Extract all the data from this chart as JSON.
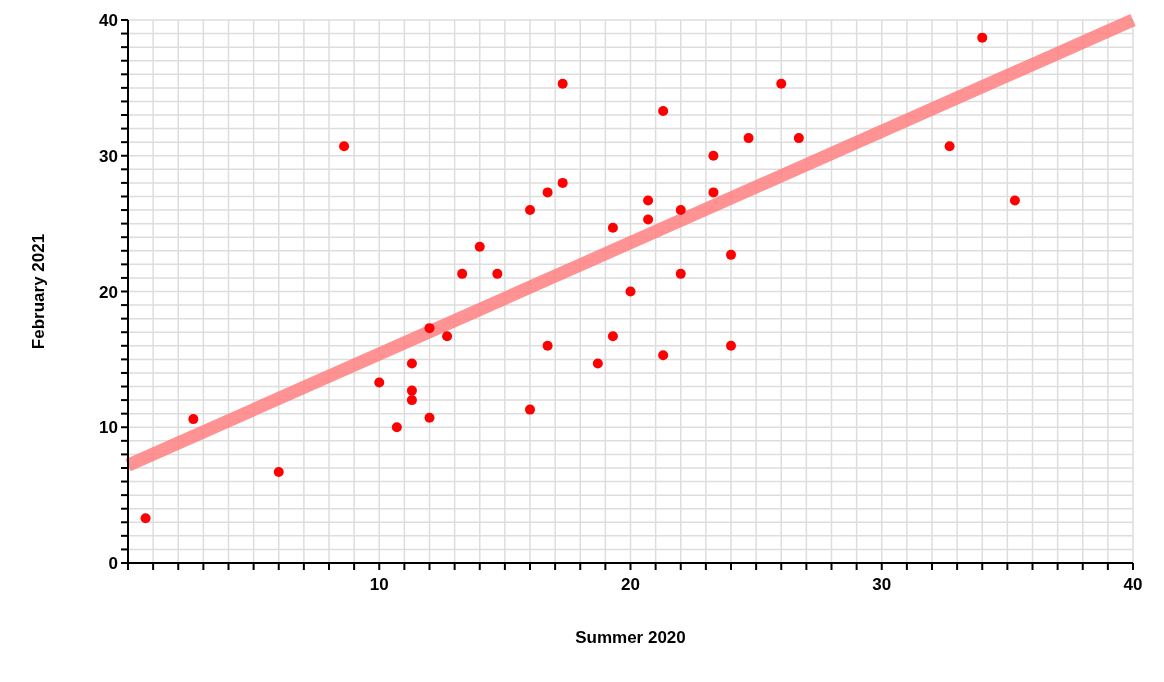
{
  "chart_data": {
    "type": "scatter",
    "xlabel": "Summer 2020",
    "ylabel": "February 2021",
    "xlim": [
      0,
      40
    ],
    "ylim": [
      0,
      40
    ],
    "xticks": [
      {
        "value": 0,
        "label": null
      },
      {
        "value": 1,
        "label": null
      },
      {
        "value": 2,
        "label": null
      },
      {
        "value": 3,
        "label": null
      },
      {
        "value": 4,
        "label": null
      },
      {
        "value": 5,
        "label": null
      },
      {
        "value": 6,
        "label": null
      },
      {
        "value": 7,
        "label": null
      },
      {
        "value": 8,
        "label": null
      },
      {
        "value": 9,
        "label": null
      },
      10,
      {
        "value": 11,
        "label": null
      },
      {
        "value": 12,
        "label": null
      },
      {
        "value": 13,
        "label": null
      },
      {
        "value": 14,
        "label": null
      },
      {
        "value": 15,
        "label": null
      },
      {
        "value": 16,
        "label": null
      },
      {
        "value": 17,
        "label": null
      },
      {
        "value": 18,
        "label": null
      },
      {
        "value": 19,
        "label": null
      },
      20,
      {
        "value": 21,
        "label": null
      },
      {
        "value": 22,
        "label": null
      },
      {
        "value": 23,
        "label": null
      },
      {
        "value": 24,
        "label": null
      },
      {
        "value": 25,
        "label": null
      },
      {
        "value": 26,
        "label": null
      },
      {
        "value": 27,
        "label": null
      },
      {
        "value": 28,
        "label": null
      },
      {
        "value": 29,
        "label": null
      },
      30,
      {
        "value": 31,
        "label": null
      },
      {
        "value": 32,
        "label": null
      },
      {
        "value": 33,
        "label": null
      },
      {
        "value": 34,
        "label": null
      },
      {
        "value": 35,
        "label": null
      },
      {
        "value": 36,
        "label": null
      },
      {
        "value": 37,
        "label": null
      },
      {
        "value": 38,
        "label": null
      },
      {
        "value": 39,
        "label": null
      },
      40
    ],
    "yticks": [
      0,
      {
        "value": 1,
        "label": null
      },
      {
        "value": 2,
        "label": null
      },
      {
        "value": 3,
        "label": null
      },
      {
        "value": 4,
        "label": null
      },
      {
        "value": 5,
        "label": null
      },
      {
        "value": 6,
        "label": null
      },
      {
        "value": 7,
        "label": null
      },
      {
        "value": 8,
        "label": null
      },
      {
        "value": 9,
        "label": null
      },
      10,
      {
        "value": 11,
        "label": null
      },
      {
        "value": 12,
        "label": null
      },
      {
        "value": 13,
        "label": null
      },
      {
        "value": 14,
        "label": null
      },
      {
        "value": 15,
        "label": null
      },
      {
        "value": 16,
        "label": null
      },
      {
        "value": 17,
        "label": null
      },
      {
        "value": 18,
        "label": null
      },
      {
        "value": 19,
        "label": null
      },
      20,
      {
        "value": 21,
        "label": null
      },
      {
        "value": 22,
        "label": null
      },
      {
        "value": 23,
        "label": null
      },
      {
        "value": 24,
        "label": null
      },
      {
        "value": 25,
        "label": null
      },
      {
        "value": 26,
        "label": null
      },
      {
        "value": 27,
        "label": null
      },
      {
        "value": 28,
        "label": null
      },
      {
        "value": 29,
        "label": null
      },
      30,
      {
        "value": 31,
        "label": null
      },
      {
        "value": 32,
        "label": null
      },
      {
        "value": 33,
        "label": null
      },
      {
        "value": 34,
        "label": null
      },
      {
        "value": 35,
        "label": null
      },
      {
        "value": 36,
        "label": null
      },
      {
        "value": 37,
        "label": null
      },
      {
        "value": 38,
        "label": null
      },
      {
        "value": 39,
        "label": null
      },
      40
    ],
    "grid": true,
    "marker": "circle",
    "series": [
      {
        "color": "#ff0000",
        "x": [
          0.7,
          2.6,
          6,
          8.6,
          10,
          10.7,
          11.3,
          11.3,
          11.3,
          12,
          12,
          12.7,
          13.3,
          14,
          14.7,
          16,
          16,
          16.7,
          16.7,
          17.3,
          17.3,
          18.7,
          19.3,
          19.3,
          20,
          20.7,
          20.7,
          21.3,
          21.3,
          22,
          22,
          23.3,
          23.3,
          24,
          24,
          24.7,
          26,
          26.7,
          32.7,
          34,
          35.3
        ],
        "values": [
          3.3,
          10.6,
          6.7,
          30.7,
          13.3,
          10,
          14.7,
          12.7,
          12,
          17.3,
          10.7,
          16.7,
          21.3,
          23.3,
          21.3,
          26,
          11.3,
          27.3,
          16,
          35.3,
          28,
          14.7,
          24.7,
          16.7,
          20,
          26.7,
          25.3,
          33.3,
          15.3,
          26,
          21.3,
          30,
          27.3,
          22.7,
          16,
          31.3,
          35.3,
          31.3,
          30.7,
          38.7,
          26.7
        ]
      },
      {
        "type": "line",
        "color": "#ff8080",
        "marker": "none",
        "x": [
          0,
          40
        ],
        "values": [
          7.2,
          40
        ]
      }
    ]
  }
}
